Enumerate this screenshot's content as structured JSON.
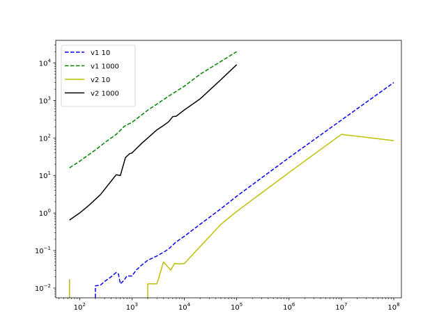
{
  "chart_data": {
    "type": "line",
    "title": "",
    "xlabel": "",
    "ylabel": "",
    "x_scale": "log",
    "y_scale": "log",
    "xlim": [
      35,
      140000000
    ],
    "ylim": [
      0.0055,
      40000
    ],
    "x_ticks": [
      {
        "value": 100,
        "mantissa": "10",
        "exp": "2"
      },
      {
        "value": 1000,
        "mantissa": "10",
        "exp": "3"
      },
      {
        "value": 10000,
        "mantissa": "10",
        "exp": "4"
      },
      {
        "value": 100000,
        "mantissa": "10",
        "exp": "5"
      },
      {
        "value": 1000000,
        "mantissa": "10",
        "exp": "6"
      },
      {
        "value": 10000000,
        "mantissa": "10",
        "exp": "7"
      },
      {
        "value": 100000000,
        "mantissa": "10",
        "exp": "8"
      }
    ],
    "y_ticks": [
      {
        "value": 0.01,
        "mantissa": "10",
        "exp": "−2"
      },
      {
        "value": 0.1,
        "mantissa": "10",
        "exp": "−1"
      },
      {
        "value": 1,
        "mantissa": "10",
        "exp": "0"
      },
      {
        "value": 10,
        "mantissa": "10",
        "exp": "1"
      },
      {
        "value": 100,
        "mantissa": "10",
        "exp": "2"
      },
      {
        "value": 1000,
        "mantissa": "10",
        "exp": "3"
      },
      {
        "value": 10000,
        "mantissa": "10",
        "exp": "4"
      }
    ],
    "grid": false,
    "legend_position": "top-left",
    "series": [
      {
        "name": "v1 10",
        "color": "#0000ff",
        "dash": true,
        "points": [
          [
            64,
            0.017
          ],
          [
            64,
            0.001
          ],
          [
            200,
            0.001
          ],
          [
            200,
            0.0115
          ],
          [
            250,
            0.012
          ],
          [
            300,
            0.015
          ],
          [
            400,
            0.02
          ],
          [
            500,
            0.026
          ],
          [
            550,
            0.024
          ],
          [
            600,
            0.013
          ],
          [
            700,
            0.016
          ],
          [
            800,
            0.021
          ],
          [
            1000,
            0.021
          ],
          [
            1200,
            0.03
          ],
          [
            1500,
            0.04
          ],
          [
            2000,
            0.055
          ],
          [
            3000,
            0.072
          ],
          [
            4000,
            0.09
          ],
          [
            5000,
            0.11
          ],
          [
            6000,
            0.14
          ],
          [
            7000,
            0.17
          ],
          [
            10000,
            0.24
          ],
          [
            20000,
            0.5
          ],
          [
            50000,
            1.3
          ],
          [
            100000,
            2.8
          ],
          [
            1000000,
            30
          ],
          [
            10000000,
            300
          ],
          [
            100000000,
            3000
          ]
        ]
      },
      {
        "name": "v1 1000",
        "color": "#008000",
        "dash": true,
        "points": [
          [
            64,
            16
          ],
          [
            100,
            24
          ],
          [
            200,
            48
          ],
          [
            300,
            75
          ],
          [
            500,
            125
          ],
          [
            600,
            160
          ],
          [
            700,
            200
          ],
          [
            800,
            225
          ],
          [
            1000,
            260
          ],
          [
            2000,
            550
          ],
          [
            3000,
            800
          ],
          [
            5000,
            1300
          ],
          [
            10000,
            2400
          ],
          [
            20000,
            5000
          ],
          [
            50000,
            11000
          ],
          [
            100000,
            20000
          ]
        ]
      },
      {
        "name": "v2 10",
        "color": "#bfbf00",
        "dash": false,
        "points": [
          [
            64,
            0.017
          ],
          [
            64,
            0.001
          ],
          [
            2000,
            0.001
          ],
          [
            2000,
            0.013
          ],
          [
            3000,
            0.013
          ],
          [
            4000,
            0.05
          ],
          [
            5500,
            0.03
          ],
          [
            6500,
            0.045
          ],
          [
            8000,
            0.044
          ],
          [
            10000,
            0.045
          ],
          [
            50000,
            0.5
          ],
          [
            100000,
            1.1
          ],
          [
            1000000,
            12
          ],
          [
            10000000,
            125
          ],
          [
            100000000,
            85
          ]
        ]
      },
      {
        "name": "v2 1000",
        "color": "#000000",
        "dash": false,
        "points": [
          [
            64,
            0.65
          ],
          [
            100,
            1
          ],
          [
            150,
            1.6
          ],
          [
            250,
            3.1
          ],
          [
            500,
            10.5
          ],
          [
            600,
            10
          ],
          [
            750,
            30
          ],
          [
            900,
            38
          ],
          [
            1000,
            40
          ],
          [
            1500,
            70
          ],
          [
            2000,
            100
          ],
          [
            3000,
            165
          ],
          [
            4000,
            215
          ],
          [
            5000,
            270
          ],
          [
            6000,
            370
          ],
          [
            7000,
            380
          ],
          [
            10000,
            560
          ],
          [
            20000,
            1100
          ],
          [
            50000,
            3600
          ],
          [
            100000,
            9000
          ]
        ]
      }
    ]
  }
}
